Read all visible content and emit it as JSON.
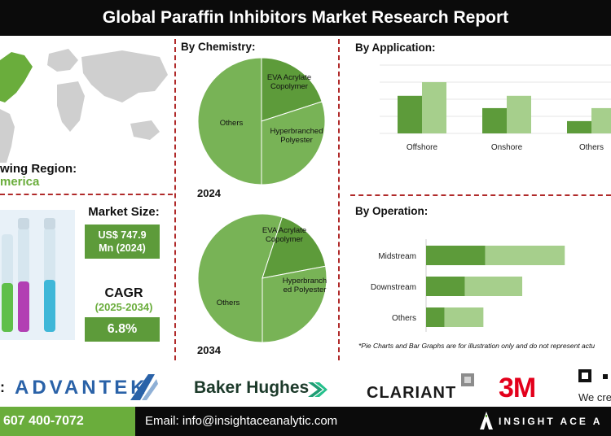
{
  "header": {
    "title": "Global Paraffin Inhibitors Market Research Report"
  },
  "region": {
    "label": "wing Region:",
    "value": "merica"
  },
  "market_size": {
    "label": "Market Size:",
    "value_line1": "US$ 747.9",
    "value_line2": "Mn (2024)"
  },
  "cagr": {
    "label": "CAGR",
    "years": "(2025-2034)",
    "value": "6.8%"
  },
  "chemistry": {
    "heading": "By Chemistry:",
    "year_a": "2024",
    "year_b": "2034",
    "labels_a": {
      "eva": "EVA Acrylate Copolymer",
      "hyper": "Hyperbranched Polyester",
      "others": "Others"
    },
    "labels_b": {
      "eva": "EVA Acrylate Copolymer",
      "hyper": "Hyperbranch ed Polyester",
      "others": "Others"
    }
  },
  "application": {
    "heading": "By Application:"
  },
  "operation": {
    "heading": "By Operation:"
  },
  "disclaimer": "*Pie Charts and Bar Graphs are for illustration only and do not represent actu",
  "logos": {
    "advantek": "ADVANTEK",
    "baker": "Baker Hughes",
    "clariant": "CLARIANT",
    "threem": "3M",
    "cut_text": "We cre",
    "colon": ":"
  },
  "footer": {
    "phone": "607 400-7072",
    "email": "Email: info@insightaceanalytic.com",
    "brand": "INSIGHT ACE A"
  },
  "colors": {
    "dark_green": "#5d9b3a",
    "mid_green": "#78b356",
    "light_green": "#a6cf8c",
    "divider": "#b02a2a",
    "bar_dark": "#1e1e1e"
  },
  "chart_data": [
    {
      "type": "pie",
      "title": "2024",
      "categories": [
        "Others",
        "EVA Acrylate Copolymer",
        "Hyperbranched Polyester"
      ],
      "values": [
        50,
        20,
        30
      ]
    },
    {
      "type": "pie",
      "title": "2034",
      "categories": [
        "Others",
        "EVA Acrylate Copolymer",
        "Hyperbranch ed Polyester"
      ],
      "values": [
        55,
        17,
        28
      ]
    },
    {
      "type": "bar",
      "categories": [
        "Offshore",
        "Onshore",
        "Others"
      ],
      "series": [
        {
          "values": [
            55,
            37,
            18
          ]
        },
        {
          "values": [
            75,
            55,
            37
          ]
        }
      ],
      "ylim": [
        0,
        100
      ]
    },
    {
      "type": "bar",
      "orientation": "horizontal",
      "stacked": true,
      "categories": [
        "Midstream",
        "Downstream",
        "Others"
      ],
      "series": [
        {
          "values": [
            32,
            21,
            10
          ]
        },
        {
          "values": [
            43,
            31,
            21
          ]
        }
      ],
      "xlim": [
        0,
        100
      ]
    }
  ]
}
